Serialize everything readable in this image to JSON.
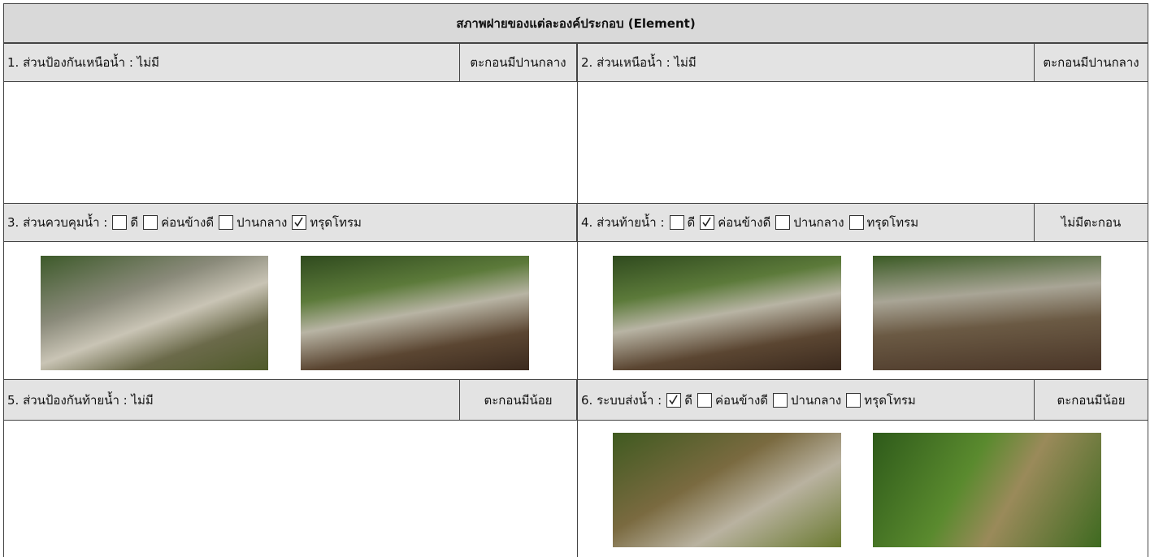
{
  "header": {
    "title": "สภาพฝายของแต่ละองค์ประกอบ (Element)"
  },
  "sections": [
    {
      "label": "1. ส่วนป้องกันเหนือน้ำ : ไม่มี",
      "sediment": "ตะกอนมีปานกลาง"
    },
    {
      "label": "2. ส่วนเหนือน้ำ : ไม่มี",
      "sediment": "ตะกอนมีปานกลาง"
    },
    {
      "label": "3. ส่วนควบคุมน้ำ :",
      "options": [
        {
          "text": "ดี",
          "checked": false
        },
        {
          "text": "ค่อนข้างดี",
          "checked": false
        },
        {
          "text": "ปานกลาง",
          "checked": false
        },
        {
          "text": "ทรุดโทรม",
          "checked": true
        }
      ]
    },
    {
      "label": "4. ส่วนท้ายน้ำ :",
      "options": [
        {
          "text": "ดี",
          "checked": false
        },
        {
          "text": "ค่อนข้างดี",
          "checked": true
        },
        {
          "text": "ปานกลาง",
          "checked": false
        },
        {
          "text": "ทรุดโทรม",
          "checked": false
        }
      ],
      "sediment": "ไม่มีตะกอน"
    },
    {
      "label": "5. ส่วนป้องกันท้ายน้ำ : ไม่มี",
      "sediment": "ตะกอนมีน้อย"
    },
    {
      "label": "6. ระบบส่งน้ำ :",
      "options": [
        {
          "text": "ดี",
          "checked": true
        },
        {
          "text": "ค่อนข้างดี",
          "checked": false
        },
        {
          "text": "ปานกลาง",
          "checked": false
        },
        {
          "text": "ทรุดโทรม",
          "checked": false
        }
      ],
      "sediment": "ตะกอนมีน้อย"
    }
  ]
}
